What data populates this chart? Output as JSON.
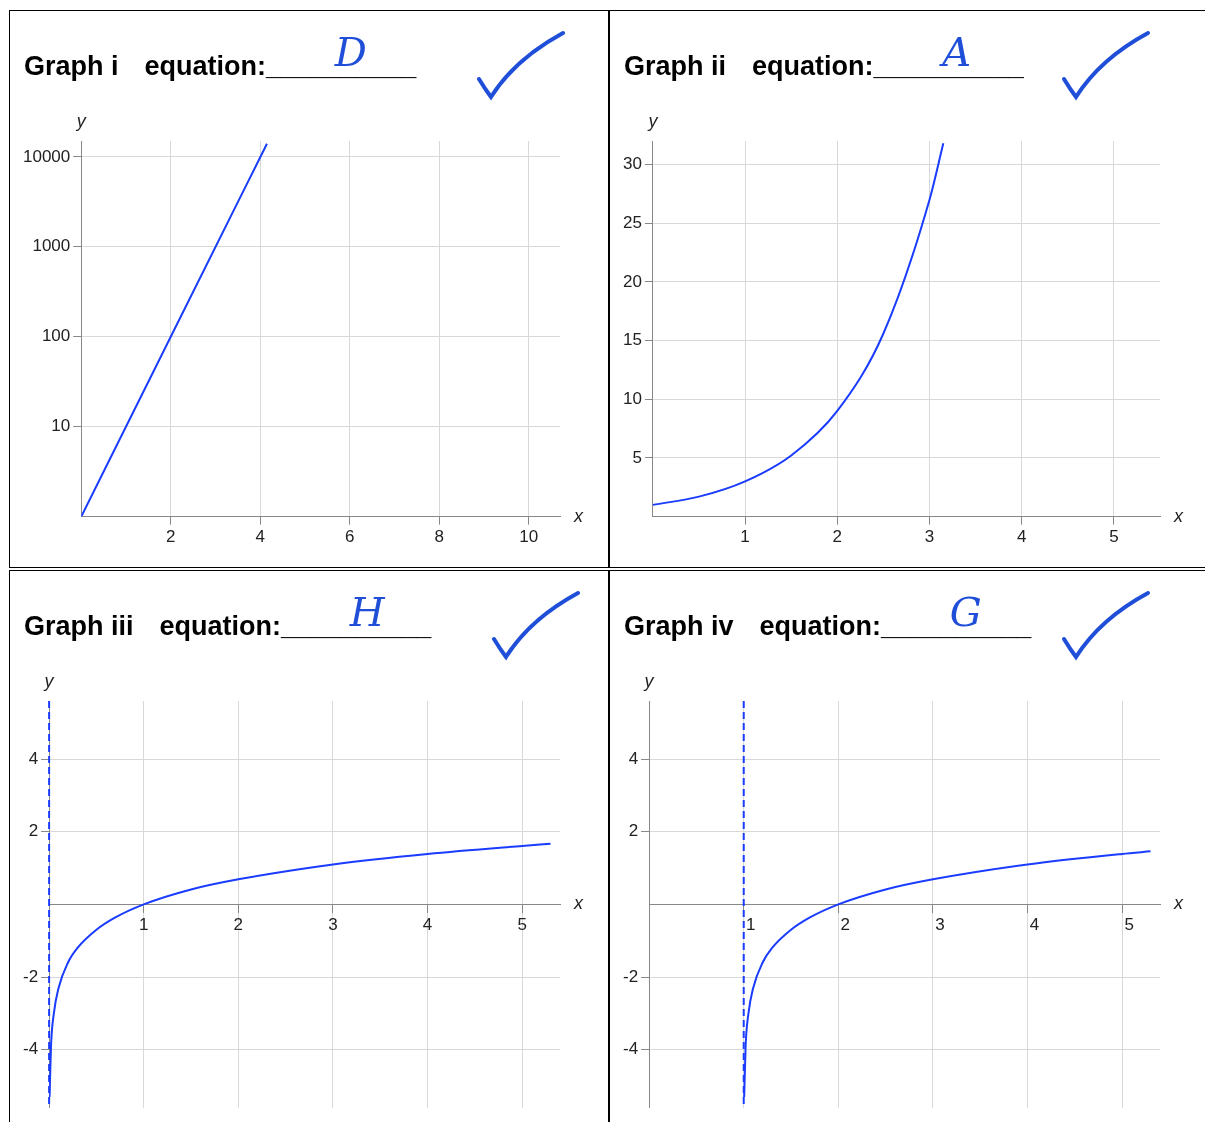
{
  "chart_data": [
    {
      "type": "line",
      "title": "Graph i",
      "subtitle": "equation:__________",
      "annotations": [
        "D"
      ],
      "xlabel": "x",
      "ylabel": "y",
      "x": [
        0,
        2,
        4.15
      ],
      "values": [
        1,
        100,
        14000
      ],
      "color": "#1a3cff",
      "xlim": [
        0,
        10.7
      ],
      "ylim": [
        1,
        15000
      ],
      "xticks": [
        2,
        4,
        6,
        8,
        10
      ],
      "yticks": [
        10,
        100,
        1000,
        10000
      ],
      "log": "y",
      "grid": true,
      "marker": "none",
      "line_style": "solid"
    },
    {
      "type": "line",
      "title": "Graph ii",
      "subtitle": "equation:__________",
      "annotations": [
        "A"
      ],
      "xlabel": "x",
      "ylabel": "y",
      "x": [
        0,
        0.5,
        1,
        1.5,
        2,
        2.5,
        3,
        3.15
      ],
      "values": [
        1,
        1.7,
        3,
        5.2,
        9,
        15.6,
        27,
        31.8
      ],
      "color": "#1a3cff",
      "xlim": [
        0,
        5.5
      ],
      "ylim": [
        0,
        32
      ],
      "xticks": [
        1,
        2,
        3,
        4,
        5
      ],
      "yticks": [
        5,
        10,
        15,
        20,
        25,
        30
      ],
      "grid": true,
      "marker": "none",
      "line_style": "solid"
    },
    {
      "type": "line",
      "title": "Graph iii",
      "subtitle": "equation:__________",
      "annotations": [
        "H"
      ],
      "xlabel": "x",
      "ylabel": "y",
      "x": [
        0.005,
        0.02,
        0.05,
        0.1,
        0.2,
        0.3,
        0.5,
        0.7,
        1,
        1.5,
        2,
        3,
        4,
        5,
        5.3
      ],
      "values": [
        -5.3,
        -3.9,
        -3,
        -2.3,
        -1.6,
        -1.2,
        -0.7,
        -0.36,
        0,
        0.41,
        0.69,
        1.1,
        1.39,
        1.61,
        1.67
      ],
      "color": "#1a3cff",
      "xlim": [
        0,
        5.4
      ],
      "ylim": [
        -5.6,
        5.6
      ],
      "xticks": [
        1,
        2,
        3,
        4,
        5
      ],
      "yticks": [
        -4,
        -2,
        2,
        4
      ],
      "grid": true,
      "marker": "none",
      "line_style": "solid",
      "ref_lines": [
        {
          "axis": "x",
          "value": 0,
          "color": "#1a3cff",
          "line_style": "dashed"
        }
      ]
    },
    {
      "type": "line",
      "title": "Graph iv",
      "subtitle": "equation:__________",
      "annotations": [
        "G"
      ],
      "xlabel": "x",
      "ylabel": "y",
      "x": [
        1.005,
        1.02,
        1.05,
        1.1,
        1.2,
        1.3,
        1.5,
        1.7,
        2,
        2.5,
        3,
        4,
        5,
        5.3
      ],
      "values": [
        -5.3,
        -3.9,
        -3,
        -2.3,
        -1.6,
        -1.2,
        -0.7,
        -0.36,
        0,
        0.41,
        0.69,
        1.1,
        1.39,
        1.46
      ],
      "color": "#1a3cff",
      "xlim": [
        0,
        5.4
      ],
      "ylim": [
        -5.6,
        5.6
      ],
      "xticks": [
        1,
        2,
        3,
        4,
        5
      ],
      "yticks": [
        -4,
        -2,
        2,
        4
      ],
      "grid": true,
      "marker": "none",
      "line_style": "solid",
      "ref_lines": [
        {
          "axis": "x",
          "value": 1,
          "color": "#1a3cff",
          "line_style": "dashed"
        }
      ]
    }
  ]
}
